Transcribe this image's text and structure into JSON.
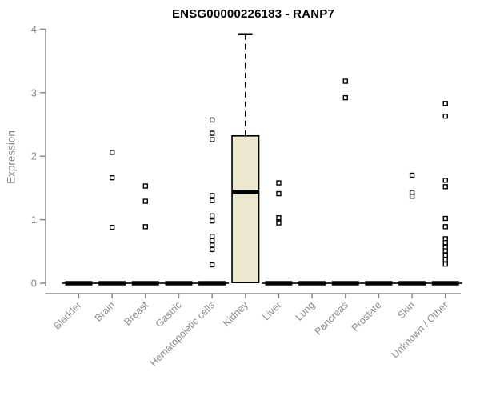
{
  "page": {
    "background": "#ffffff"
  },
  "chart_data": {
    "type": "boxplot",
    "title": "ENSG00000226183 - RANP7",
    "ylabel": "Expression",
    "xlabel": "",
    "ylim": [
      0,
      4
    ],
    "yticks": [
      0,
      1,
      2,
      3,
      4
    ],
    "grid": false,
    "legend": "none",
    "categories": [
      "Bladder",
      "Brain",
      "Breast",
      "Gastric",
      "Hematopoietic cells",
      "Kidney",
      "Liver",
      "Lung",
      "Pancreas",
      "Prostate",
      "Skin",
      "Unknown / Other"
    ],
    "series": [
      {
        "category": "Bladder",
        "median": 0,
        "box": null,
        "points": []
      },
      {
        "category": "Brain",
        "median": 0,
        "box": null,
        "points": [
          2.06,
          1.66,
          0.88
        ]
      },
      {
        "category": "Breast",
        "median": 0,
        "box": null,
        "points": [
          1.53,
          1.29,
          0.89
        ]
      },
      {
        "category": "Gastric",
        "median": 0,
        "box": null,
        "points": []
      },
      {
        "category": "Hematopoietic cells",
        "median": 0,
        "box": null,
        "points": [
          2.57,
          2.36,
          2.26,
          1.38,
          1.3,
          1.06,
          0.98,
          0.74,
          0.67,
          0.6,
          0.53,
          0.29
        ]
      },
      {
        "category": "Kidney",
        "median": 1.44,
        "box": {
          "q1": 0.01,
          "median": 1.44,
          "q3": 2.32,
          "whisker_high": 3.92,
          "whisker_low": null
        },
        "points": []
      },
      {
        "category": "Liver",
        "median": 0,
        "box": null,
        "points": [
          1.58,
          1.41,
          1.03,
          0.95
        ]
      },
      {
        "category": "Lung",
        "median": 0,
        "box": null,
        "points": []
      },
      {
        "category": "Pancreas",
        "median": 0,
        "box": null,
        "points": [
          3.18,
          2.92
        ]
      },
      {
        "category": "Prostate",
        "median": 0,
        "box": null,
        "points": []
      },
      {
        "category": "Skin",
        "median": 0,
        "box": null,
        "points": [
          1.7,
          1.43,
          1.37
        ]
      },
      {
        "category": "Unknown / Other",
        "median": 0,
        "box": null,
        "points": [
          2.83,
          2.63,
          1.62,
          1.52,
          1.02,
          0.89,
          0.7,
          0.64,
          0.57,
          0.51,
          0.44,
          0.37,
          0.3
        ]
      }
    ],
    "colors": {
      "box_fill": "#ece7cf",
      "outline": "#000000",
      "axis": "#8a8a8a",
      "tick_text": "#8a8a8a",
      "title_text": "#000000",
      "point_fill": "#ffffff",
      "background": "#ffffff"
    }
  }
}
